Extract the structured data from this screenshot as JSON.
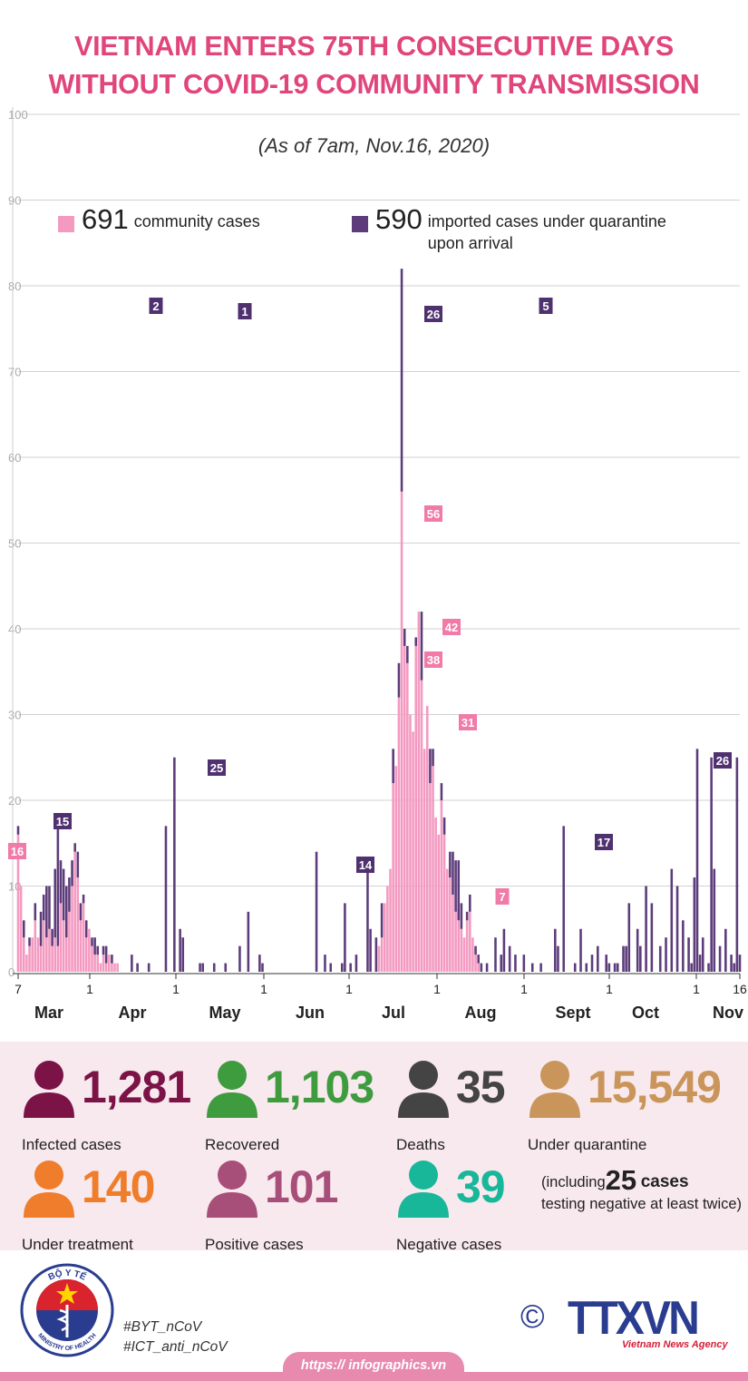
{
  "title": {
    "line1": "VIETNAM ENTERS 75TH CONSECUTIVE DAYS",
    "line2": "WITHOUT COVID-19 COMMUNITY TRANSMISSION"
  },
  "subtitle": "(As of 7am, Nov.16, 2020)",
  "legend": {
    "community": {
      "value": "691",
      "label": "community cases",
      "color": "#f49ac1"
    },
    "imported": {
      "value": "590",
      "label": "imported cases under quarantine upon arrival",
      "color": "#5c3c7a"
    }
  },
  "chart_data": {
    "type": "bar",
    "stacked": true,
    "ylim": [
      0,
      100
    ],
    "yticks": [
      "0",
      "10",
      "20",
      "30",
      "40",
      "50",
      "60",
      "70",
      "80",
      "90",
      "100"
    ],
    "x_day_ticks": [
      "7",
      "1",
      "1",
      "1",
      "1",
      "1",
      "1",
      "1",
      "1",
      "1",
      "16"
    ],
    "months": [
      "Mar",
      "Apr",
      "May",
      "Jun",
      "Jul",
      "Aug",
      "Sept",
      "Oct",
      "Nov"
    ],
    "series": [
      {
        "name": "community cases",
        "color": "#f49ac1",
        "peaks": [
          {
            "day": "Mar 7",
            "value": 16
          },
          {
            "day": "Mar 22",
            "value": 12
          },
          {
            "day": "Jul 31",
            "value": 56
          },
          {
            "day": "Aug 1",
            "value": 38
          },
          {
            "day": "Aug 5",
            "value": 42
          },
          {
            "day": "Aug 9",
            "value": 31
          },
          {
            "day": "Aug 27",
            "value": 7
          }
        ]
      },
      {
        "name": "imported cases",
        "color": "#5c3c7a",
        "peaks": [
          {
            "day": "Mar 24",
            "value": 15
          },
          {
            "day": "Apr 15",
            "value": 2
          },
          {
            "day": "Apr 30",
            "value": 25
          },
          {
            "day": "May 10",
            "value": 1
          },
          {
            "day": "Jun 22",
            "value": 14
          },
          {
            "day": "Jul 31",
            "value": 26
          },
          {
            "day": "Sep 8",
            "value": 5
          },
          {
            "day": "Sep 30",
            "value": 17
          },
          {
            "day": "Nov 13",
            "value": 26
          }
        ]
      }
    ],
    "annotations": [
      {
        "text": "16",
        "series": "community"
      },
      {
        "text": "15",
        "series": "imported"
      },
      {
        "text": "2",
        "series": "imported"
      },
      {
        "text": "25",
        "series": "imported"
      },
      {
        "text": "1",
        "series": "imported"
      },
      {
        "text": "14",
        "series": "imported"
      },
      {
        "text": "26",
        "series": "imported"
      },
      {
        "text": "56",
        "series": "community"
      },
      {
        "text": "38",
        "series": "community"
      },
      {
        "text": "42",
        "series": "community"
      },
      {
        "text": "31",
        "series": "community"
      },
      {
        "text": "7",
        "series": "community"
      },
      {
        "text": "5",
        "series": "imported"
      },
      {
        "text": "17",
        "series": "imported"
      },
      {
        "text": "26",
        "series": "imported"
      }
    ]
  },
  "stats": {
    "infected": {
      "value": "1,281",
      "label": "Infected cases",
      "color": "#7b1346"
    },
    "recovered": {
      "value": "1,103",
      "label": "Recovered",
      "color": "#3e9b3e"
    },
    "deaths": {
      "value": "35",
      "label": "Deaths",
      "color": "#444444"
    },
    "quarantine": {
      "value": "15,549",
      "label": "Under quarantine",
      "color": "#c9955a"
    },
    "treatment": {
      "value": "140",
      "label": "Under treatment",
      "color": "#ef7d2b"
    },
    "positive": {
      "value": "101",
      "label": "Positive cases",
      "color": "#a84f79"
    },
    "negative": {
      "value": "39",
      "label": "Negative cases",
      "color": "#19b79a"
    },
    "note": {
      "prefix": "(including",
      "count": "25",
      "unit": "cases",
      "suffix": "testing negative at least twice)"
    }
  },
  "footer": {
    "logo_top": "BỘ Y TẾ",
    "logo_bottom": "MINISTRY OF HEALTH",
    "hashtag1": "#BYT_nCoV",
    "hashtag2": "#ICT_anti_nCoV",
    "copyright": "©",
    "agency": "TTXVN",
    "agency_sub": "Vietnam News Agency",
    "website": "https:// infographics.vn"
  }
}
